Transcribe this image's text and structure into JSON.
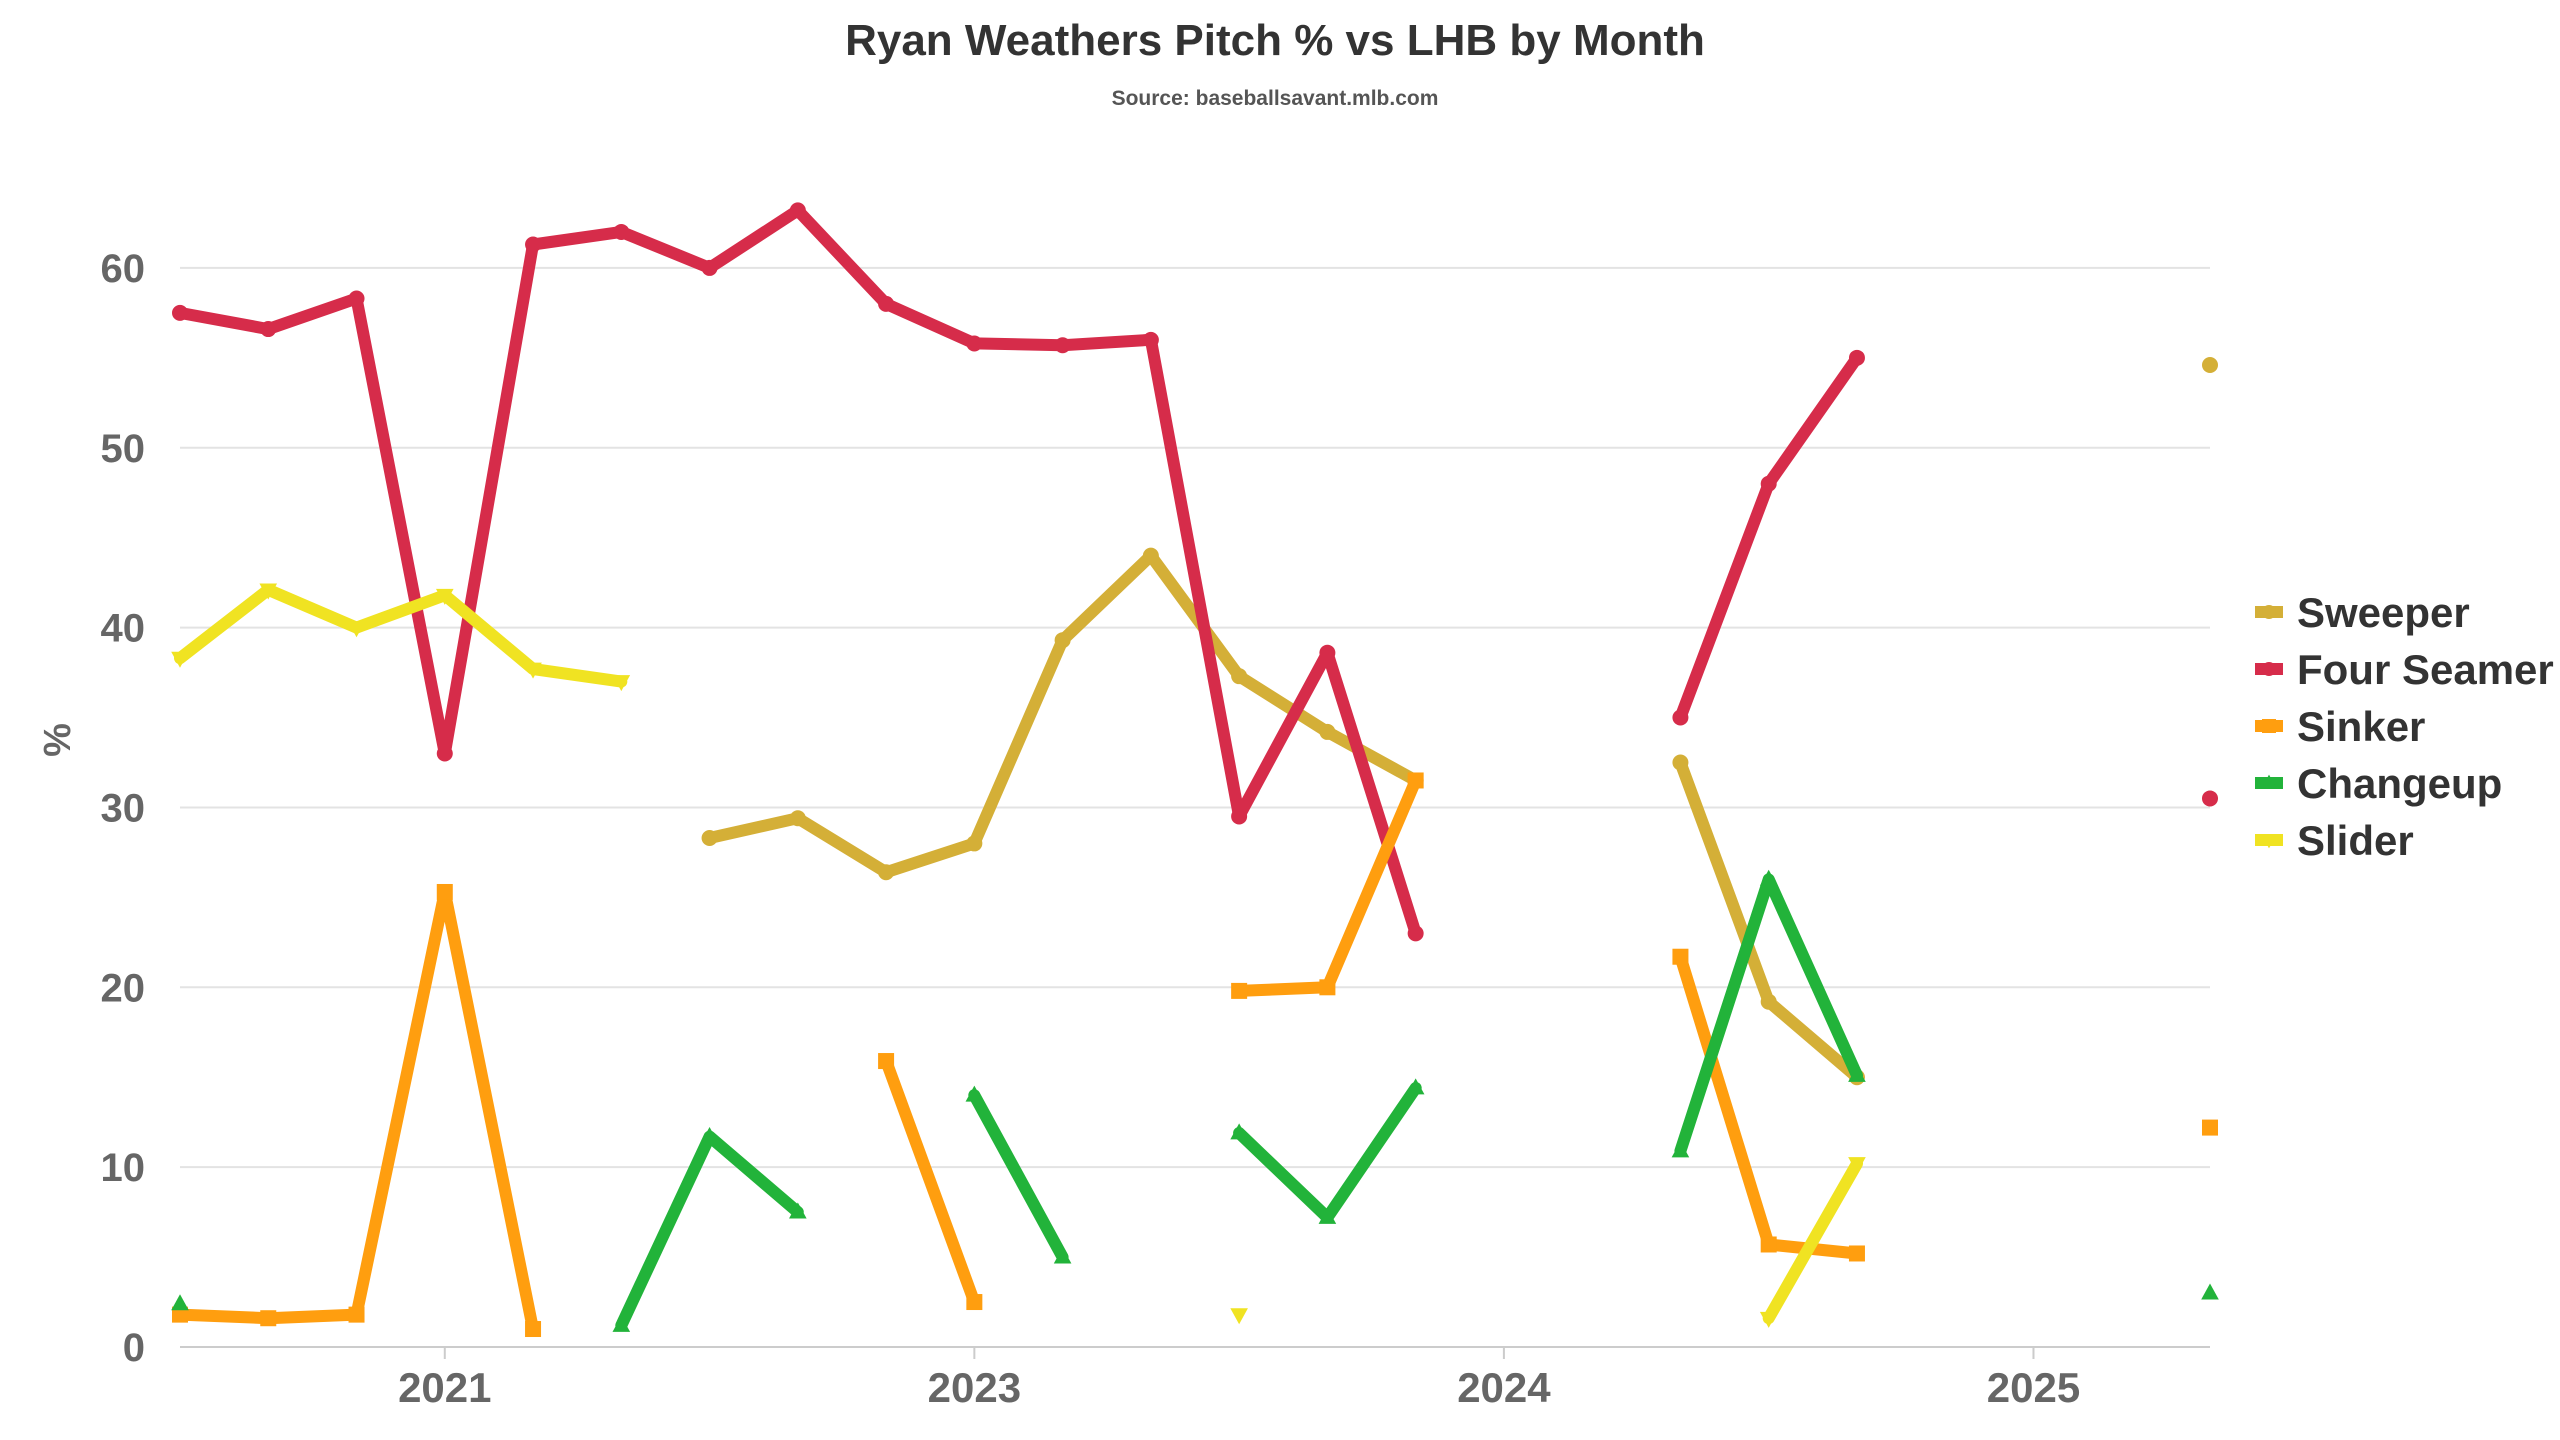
{
  "chart_data": {
    "type": "line",
    "title": "Ryan Weathers Pitch % vs LHB by Month",
    "subtitle": "Source: baseballsavant.mlb.com",
    "ylabel": "%",
    "xlabel": "",
    "ylim": [
      0,
      66
    ],
    "yticks": [
      0,
      10,
      20,
      30,
      40,
      50,
      60
    ],
    "grid": true,
    "legend_position": "right",
    "x_positions": [
      "2021-03",
      "2021-04",
      "2021-05",
      "2021-06",
      "2021-07",
      "2021-08",
      "2023-03",
      "2023-04",
      "2023-05",
      "2023-06",
      "2023-07",
      "2023-08",
      "2024-03",
      "2024-04",
      "2024-05",
      "2024-06",
      "2024-07",
      "2024-08",
      "2025-03",
      "2025-04",
      "2025-05",
      "2025-06",
      "2025-07",
      "2025-08"
    ],
    "xtick_labels": [
      {
        "label": "2021",
        "position": "2021-06"
      },
      {
        "label": "2023",
        "position": "2023-06"
      },
      {
        "label": "2024",
        "position": "2024-06"
      },
      {
        "label": "2025",
        "position": "2025-06"
      }
    ],
    "series": [
      {
        "name": "Sweeper",
        "color": "#D4AF37",
        "marker": "circle",
        "data": [
          {
            "x": "2023-03",
            "y": 28.3
          },
          {
            "x": "2023-04",
            "y": 29.4
          },
          {
            "x": "2023-05",
            "y": 26.4
          },
          {
            "x": "2023-06",
            "y": 28.0
          },
          {
            "x": "2023-07",
            "y": 39.3
          },
          {
            "x": "2023-08",
            "y": 44.0
          },
          {
            "x": "2024-03",
            "y": 37.3
          },
          {
            "x": "2024-04",
            "y": 34.2
          },
          {
            "x": "2024-05",
            "y": 31.5
          },
          {
            "x": "2024-08",
            "y": 32.5
          },
          {
            "x": "2025-03",
            "y": 19.2
          },
          {
            "x": "2025-04",
            "y": 15.0
          },
          {
            "x": "2025-08",
            "y": 54.6
          }
        ]
      },
      {
        "name": "Four Seamer",
        "color": "#D62C4A",
        "marker": "circle",
        "data": [
          {
            "x": "2021-03",
            "y": 57.5
          },
          {
            "x": "2021-04",
            "y": 56.6
          },
          {
            "x": "2021-05",
            "y": 58.3
          },
          {
            "x": "2021-06",
            "y": 33.0
          },
          {
            "x": "2021-07",
            "y": 61.3
          },
          {
            "x": "2021-08",
            "y": 62.0
          },
          {
            "x": "2023-03",
            "y": 60.0
          },
          {
            "x": "2023-04",
            "y": 63.2
          },
          {
            "x": "2023-05",
            "y": 58.0
          },
          {
            "x": "2023-06",
            "y": 55.8
          },
          {
            "x": "2023-07",
            "y": 55.7
          },
          {
            "x": "2023-08",
            "y": 56.0
          },
          {
            "x": "2024-03",
            "y": 29.5
          },
          {
            "x": "2024-04",
            "y": 38.6
          },
          {
            "x": "2024-05",
            "y": 23.0
          },
          {
            "x": "2024-08",
            "y": 35.0
          },
          {
            "x": "2025-03",
            "y": 48.0
          },
          {
            "x": "2025-04",
            "y": 55.0
          },
          {
            "x": "2025-08",
            "y": 30.5
          }
        ]
      },
      {
        "name": "Sinker",
        "color": "#FF9E0F",
        "marker": "square",
        "data": [
          {
            "x": "2021-03",
            "y": 1.8
          },
          {
            "x": "2021-04",
            "y": 1.6
          },
          {
            "x": "2021-05",
            "y": 1.8
          },
          {
            "x": "2021-06",
            "y": 25.3
          },
          {
            "x": "2021-07",
            "y": 1.0
          },
          {
            "x": "2023-05",
            "y": 15.9
          },
          {
            "x": "2023-06",
            "y": 2.5
          },
          {
            "x": "2024-03",
            "y": 19.8
          },
          {
            "x": "2024-04",
            "y": 20.0
          },
          {
            "x": "2024-05",
            "y": 31.5
          },
          {
            "x": "2024-08",
            "y": 21.7
          },
          {
            "x": "2025-03",
            "y": 5.7
          },
          {
            "x": "2025-04",
            "y": 5.2
          },
          {
            "x": "2025-08",
            "y": 12.2
          }
        ]
      },
      {
        "name": "Changeup",
        "color": "#22B33A",
        "marker": "triangle",
        "data": [
          {
            "x": "2021-03",
            "y": 2.4
          },
          {
            "x": "2021-08",
            "y": 1.2
          },
          {
            "x": "2023-03",
            "y": 11.7
          },
          {
            "x": "2023-04",
            "y": 7.5
          },
          {
            "x": "2023-06",
            "y": 14.0
          },
          {
            "x": "2023-07",
            "y": 5.0
          },
          {
            "x": "2024-03",
            "y": 11.9
          },
          {
            "x": "2024-04",
            "y": 7.2
          },
          {
            "x": "2024-05",
            "y": 14.4
          },
          {
            "x": "2024-08",
            "y": 10.9
          },
          {
            "x": "2025-03",
            "y": 26.0
          },
          {
            "x": "2025-04",
            "y": 15.1
          },
          {
            "x": "2025-08",
            "y": 3.0
          }
        ]
      },
      {
        "name": "Slider",
        "color": "#F0E322",
        "marker": "triangle-down",
        "data": [
          {
            "x": "2021-03",
            "y": 38.3
          },
          {
            "x": "2021-04",
            "y": 42.1
          },
          {
            "x": "2021-05",
            "y": 40.0
          },
          {
            "x": "2021-06",
            "y": 41.8
          },
          {
            "x": "2021-07",
            "y": 37.7
          },
          {
            "x": "2021-08",
            "y": 37.0
          },
          {
            "x": "2024-03",
            "y": 1.8
          },
          {
            "x": "2025-03",
            "y": 1.6
          },
          {
            "x": "2025-04",
            "y": 10.2
          }
        ]
      }
    ]
  }
}
